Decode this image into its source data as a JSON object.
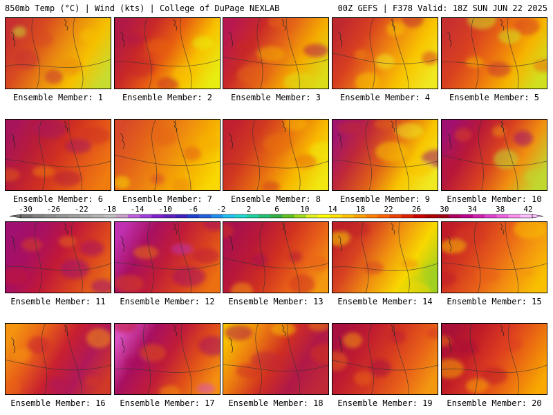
{
  "header": {
    "left": "850mb Temp (°C) | Wind (kts) | College of DuPage NEXLAB",
    "right": "00Z GEFS | F378 Valid: 18Z SUN JUN 22 2025"
  },
  "colorbar": {
    "ticks": [
      "-30",
      "-26",
      "-22",
      "-18",
      "-14",
      "-10",
      "-6",
      "-2",
      "2",
      "6",
      "10",
      "14",
      "18",
      "22",
      "26",
      "30",
      "34",
      "38",
      "42"
    ],
    "colors": [
      "#707070",
      "#808080",
      "#8a8a8a",
      "#949494",
      "#9e9e9e",
      "#a8a8a8",
      "#b4b4b4",
      "#c0c0c0",
      "#c8a0c8",
      "#c060e0",
      "#a040e0",
      "#8020d0",
      "#6020c0",
      "#4020c0",
      "#2040d0",
      "#2060e0",
      "#2090f0",
      "#20c0f0",
      "#20d8d0",
      "#20d0a0",
      "#20c070",
      "#30b040",
      "#60c020",
      "#a0d820",
      "#e0f020",
      "#ffff00",
      "#ffe000",
      "#ffc000",
      "#ffa000",
      "#ff8000",
      "#ff6000",
      "#f04000",
      "#e02000",
      "#d00000",
      "#b00000",
      "#a00010",
      "#b00060",
      "#c00090",
      "#d020b0",
      "#e040d0",
      "#f060e0",
      "#ff90f0",
      "#ffc0ff"
    ]
  },
  "members": [
    {
      "label": "Ensemble Member: 1",
      "colors": [
        "#c83030",
        "#d84a20",
        "#ea8a10",
        "#f6c000",
        "#c8dc30"
      ]
    },
    {
      "label": "Ensemble Member: 2",
      "colors": [
        "#b01848",
        "#c82828",
        "#e86010",
        "#f8c000",
        "#e8ec10"
      ]
    },
    {
      "label": "Ensemble Member: 3",
      "colors": [
        "#b81850",
        "#c82828",
        "#e46418",
        "#f4ac00",
        "#dcdc18"
      ]
    },
    {
      "label": "Ensemble Member: 4",
      "colors": [
        "#c02830",
        "#d84020",
        "#ee8410",
        "#f8c400",
        "#f0e820"
      ]
    },
    {
      "label": "Ensemble Member: 5",
      "colors": [
        "#c83030",
        "#d84020",
        "#ec7010",
        "#f6b400",
        "#d0e020"
      ]
    },
    {
      "label": "Ensemble Member: 6",
      "colors": [
        "#a8145c",
        "#b81c38",
        "#d03020",
        "#e45818",
        "#f07c10"
      ]
    },
    {
      "label": "Ensemble Member: 7",
      "colors": [
        "#d84828",
        "#e46418",
        "#ee8810",
        "#f6b000",
        "#f8d800"
      ]
    },
    {
      "label": "Ensemble Member: 8",
      "colors": [
        "#c02030",
        "#d03820",
        "#e87010",
        "#f8b800",
        "#f0e810"
      ]
    },
    {
      "label": "Ensemble Member: 9",
      "colors": [
        "#a01470",
        "#c02838",
        "#e06018",
        "#f8c400",
        "#f0e820"
      ]
    },
    {
      "label": "Ensemble Member: 10",
      "colors": [
        "#a01070",
        "#b81838",
        "#d84020",
        "#f09010",
        "#c0d830"
      ]
    },
    {
      "label": "Ensemble Member: 11",
      "colors": [
        "#a01070",
        "#a81060",
        "#c01838",
        "#d84020",
        "#e86818"
      ]
    },
    {
      "label": "Ensemble Member: 12",
      "colors": [
        "#c030b0",
        "#a81060",
        "#c01c38",
        "#d84020",
        "#ec7010"
      ]
    },
    {
      "label": "Ensemble Member: 13",
      "colors": [
        "#a81050",
        "#b81838",
        "#d03020",
        "#e86018",
        "#f49810"
      ]
    },
    {
      "label": "Ensemble Member: 14",
      "colors": [
        "#c02028",
        "#d84420",
        "#f09010",
        "#f8d800",
        "#a0d020"
      ]
    },
    {
      "label": "Ensemble Member: 15",
      "colors": [
        "#c01c28",
        "#d43820",
        "#e86018",
        "#f49410",
        "#f8c000"
      ]
    },
    {
      "label": "Ensemble Member: 16",
      "colors": [
        "#f49410",
        "#e86018",
        "#c82030",
        "#b01858",
        "#d03828"
      ]
    },
    {
      "label": "Ensemble Member: 17",
      "colors": [
        "#d850c0",
        "#a81060",
        "#c01c38",
        "#e05018",
        "#f49010"
      ]
    },
    {
      "label": "Ensemble Member: 18",
      "colors": [
        "#f8c000",
        "#ec7c10",
        "#d03020",
        "#b01848",
        "#c02838"
      ]
    },
    {
      "label": "Ensemble Member: 19",
      "colors": [
        "#a81040",
        "#c01c30",
        "#d43820",
        "#e86018",
        "#f49810"
      ]
    },
    {
      "label": "Ensemble Member: 20",
      "colors": [
        "#a81038",
        "#c01c28",
        "#dc3c20",
        "#ec7010",
        "#f8a800"
      ]
    }
  ]
}
